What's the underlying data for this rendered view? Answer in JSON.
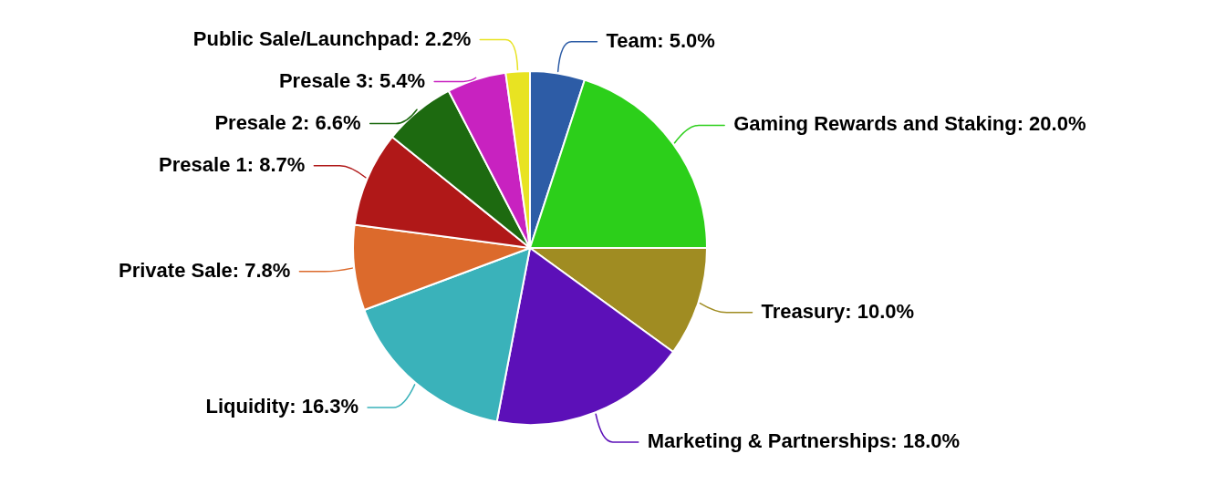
{
  "chart_data": {
    "type": "pie",
    "categories": [
      "Team",
      "Gaming Rewards and Staking",
      "Treasury",
      "Marketing & Partnerships",
      "Liquidity",
      "Private Sale",
      "Presale 1",
      "Presale 2",
      "Presale 3",
      "Public Sale/Launchpad"
    ],
    "values": [
      5.0,
      20.0,
      10.0,
      18.0,
      16.3,
      7.8,
      8.7,
      6.6,
      5.4,
      2.2
    ],
    "colors": [
      "#2d5ca6",
      "#2ccf1a",
      "#a08c22",
      "#5c10b8",
      "#3ab2ba",
      "#dc6a2c",
      "#b01818",
      "#1d6a10",
      "#c822c0",
      "#e8e322"
    ],
    "value_labels": [
      "5.0%",
      "20.0%",
      "10.0%",
      "18.0%",
      "16.3%",
      "7.8%",
      "8.7%",
      "6.6%",
      "5.4%",
      "2.2%"
    ]
  }
}
